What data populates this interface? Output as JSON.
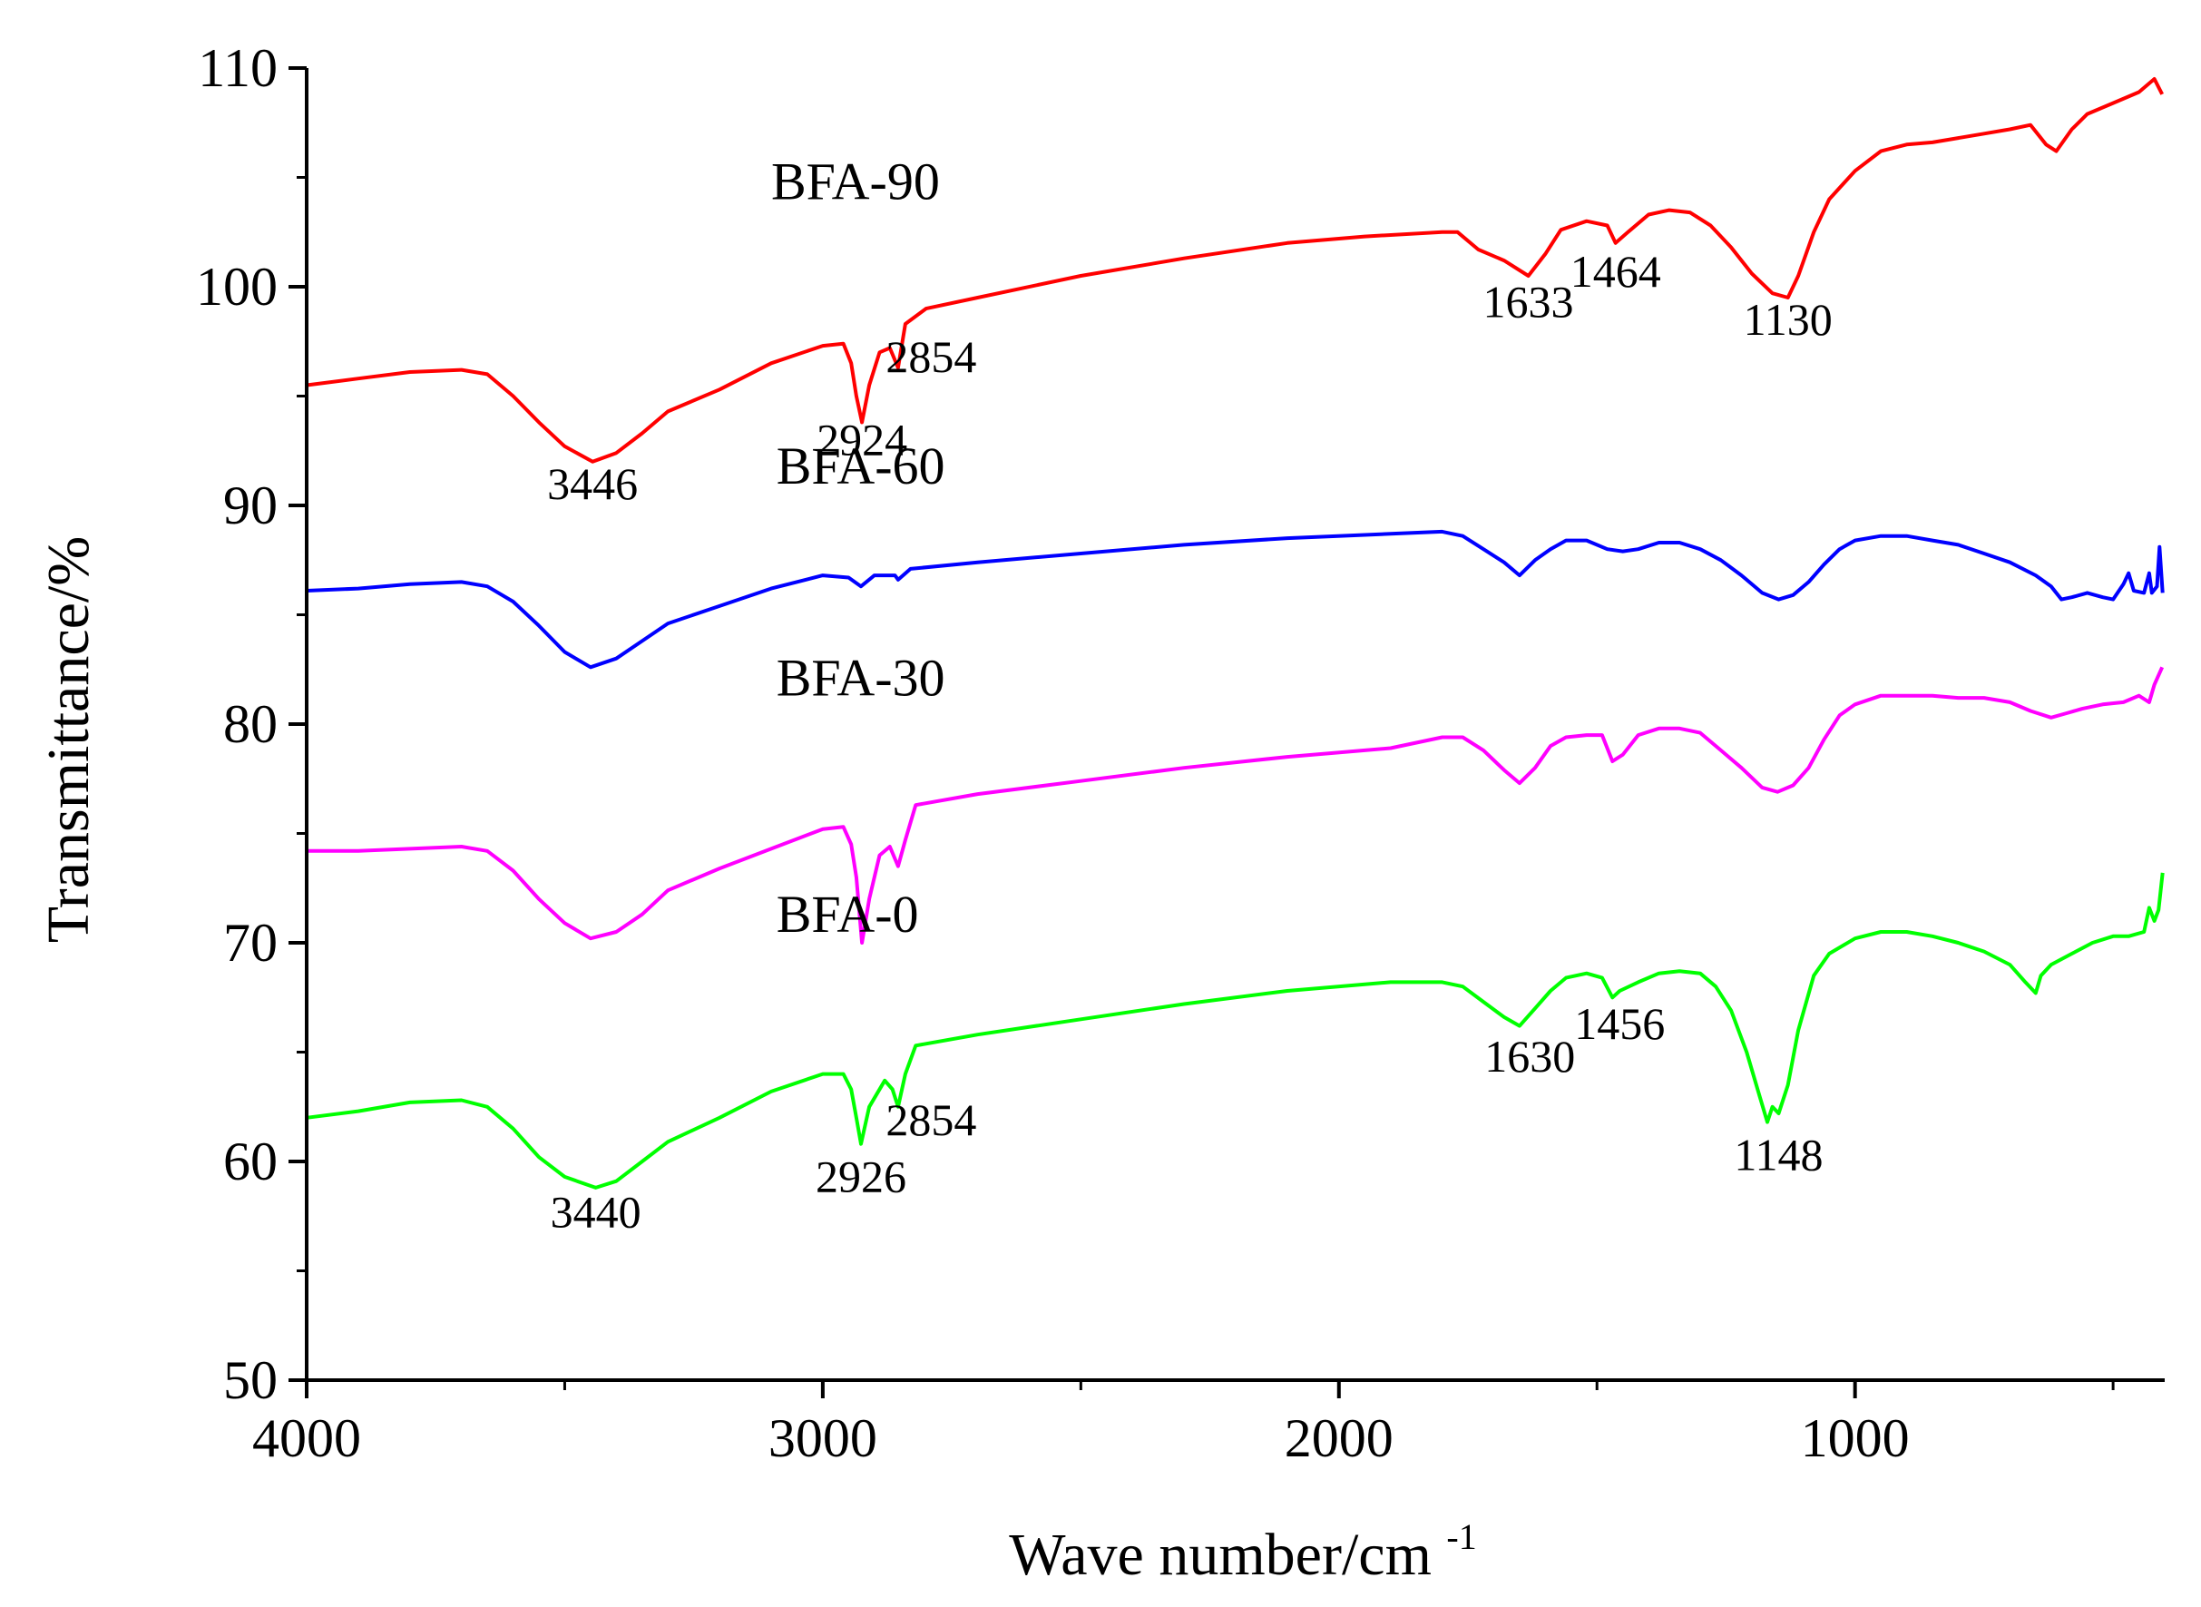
{
  "chart_data": {
    "type": "line",
    "title": "",
    "xlabel": "Wave number/cm",
    "xlabel_superscript": "-1",
    "ylabel": "Transmittance/%",
    "xlim": [
      4000,
      400
    ],
    "x_reversed": true,
    "ylim": [
      50,
      110
    ],
    "xticks": [
      4000,
      3000,
      2000,
      1000
    ],
    "yticks": [
      50,
      60,
      70,
      80,
      90,
      100,
      110
    ],
    "grid": false,
    "legend": "none",
    "series": [
      {
        "name": "BFA-90",
        "color": "#ff0000",
        "points": [
          [
            4000,
            95.5
          ],
          [
            3900,
            95.8
          ],
          [
            3800,
            96.1
          ],
          [
            3700,
            96.2
          ],
          [
            3650,
            96.0
          ],
          [
            3600,
            95.0
          ],
          [
            3550,
            93.8
          ],
          [
            3500,
            92.7
          ],
          [
            3446,
            92.0
          ],
          [
            3400,
            92.4
          ],
          [
            3350,
            93.3
          ],
          [
            3300,
            94.3
          ],
          [
            3200,
            95.3
          ],
          [
            3100,
            96.5
          ],
          [
            3000,
            97.3
          ],
          [
            2960,
            97.4
          ],
          [
            2945,
            96.5
          ],
          [
            2935,
            95.0
          ],
          [
            2924,
            93.8
          ],
          [
            2910,
            95.5
          ],
          [
            2890,
            97.0
          ],
          [
            2870,
            97.2
          ],
          [
            2854,
            96.3
          ],
          [
            2840,
            98.3
          ],
          [
            2800,
            99.0
          ],
          [
            2700,
            99.5
          ],
          [
            2500,
            100.5
          ],
          [
            2300,
            101.3
          ],
          [
            2100,
            102.0
          ],
          [
            1950,
            102.3
          ],
          [
            1800,
            102.5
          ],
          [
            1770,
            102.5
          ],
          [
            1730,
            101.7
          ],
          [
            1680,
            101.2
          ],
          [
            1633,
            100.5
          ],
          [
            1600,
            101.5
          ],
          [
            1570,
            102.6
          ],
          [
            1520,
            103.0
          ],
          [
            1480,
            102.8
          ],
          [
            1464,
            102.0
          ],
          [
            1440,
            102.5
          ],
          [
            1400,
            103.3
          ],
          [
            1360,
            103.5
          ],
          [
            1320,
            103.4
          ],
          [
            1280,
            102.8
          ],
          [
            1240,
            101.8
          ],
          [
            1200,
            100.6
          ],
          [
            1160,
            99.7
          ],
          [
            1130,
            99.5
          ],
          [
            1110,
            100.5
          ],
          [
            1080,
            102.5
          ],
          [
            1050,
            104.0
          ],
          [
            1000,
            105.3
          ],
          [
            950,
            106.2
          ],
          [
            900,
            106.5
          ],
          [
            850,
            106.6
          ],
          [
            800,
            106.8
          ],
          [
            750,
            107.0
          ],
          [
            700,
            107.2
          ],
          [
            660,
            107.4
          ],
          [
            630,
            106.5
          ],
          [
            610,
            106.2
          ],
          [
            580,
            107.2
          ],
          [
            550,
            107.9
          ],
          [
            500,
            108.4
          ],
          [
            450,
            108.9
          ],
          [
            420,
            109.5
          ],
          [
            405,
            108.8
          ]
        ]
      },
      {
        "name": "BFA-60",
        "color": "#0000ff",
        "points": [
          [
            4000,
            86.1
          ],
          [
            3900,
            86.2
          ],
          [
            3800,
            86.4
          ],
          [
            3700,
            86.5
          ],
          [
            3650,
            86.3
          ],
          [
            3600,
            85.6
          ],
          [
            3550,
            84.5
          ],
          [
            3500,
            83.3
          ],
          [
            3450,
            82.6
          ],
          [
            3400,
            83.0
          ],
          [
            3350,
            83.8
          ],
          [
            3300,
            84.6
          ],
          [
            3200,
            85.4
          ],
          [
            3100,
            86.2
          ],
          [
            3000,
            86.8
          ],
          [
            2950,
            86.7
          ],
          [
            2926,
            86.3
          ],
          [
            2900,
            86.8
          ],
          [
            2860,
            86.8
          ],
          [
            2854,
            86.6
          ],
          [
            2830,
            87.1
          ],
          [
            2700,
            87.4
          ],
          [
            2500,
            87.8
          ],
          [
            2300,
            88.2
          ],
          [
            2100,
            88.5
          ],
          [
            1900,
            88.7
          ],
          [
            1800,
            88.8
          ],
          [
            1760,
            88.6
          ],
          [
            1720,
            88.0
          ],
          [
            1680,
            87.4
          ],
          [
            1650,
            86.8
          ],
          [
            1620,
            87.5
          ],
          [
            1590,
            88.0
          ],
          [
            1560,
            88.4
          ],
          [
            1520,
            88.4
          ],
          [
            1480,
            88.0
          ],
          [
            1450,
            87.9
          ],
          [
            1420,
            88.0
          ],
          [
            1380,
            88.3
          ],
          [
            1340,
            88.3
          ],
          [
            1300,
            88.0
          ],
          [
            1260,
            87.5
          ],
          [
            1220,
            86.8
          ],
          [
            1180,
            86.0
          ],
          [
            1148,
            85.7
          ],
          [
            1120,
            85.9
          ],
          [
            1090,
            86.5
          ],
          [
            1060,
            87.3
          ],
          [
            1030,
            88.0
          ],
          [
            1000,
            88.4
          ],
          [
            950,
            88.6
          ],
          [
            900,
            88.6
          ],
          [
            850,
            88.4
          ],
          [
            800,
            88.2
          ],
          [
            750,
            87.8
          ],
          [
            700,
            87.4
          ],
          [
            650,
            86.8
          ],
          [
            620,
            86.3
          ],
          [
            600,
            85.7
          ],
          [
            580,
            85.8
          ],
          [
            550,
            86.0
          ],
          [
            520,
            85.8
          ],
          [
            500,
            85.7
          ],
          [
            480,
            86.4
          ],
          [
            470,
            86.9
          ],
          [
            460,
            86.1
          ],
          [
            440,
            86.0
          ],
          [
            430,
            86.9
          ],
          [
            425,
            86.0
          ],
          [
            415,
            86.3
          ],
          [
            410,
            88.1
          ],
          [
            404,
            86.0
          ]
        ]
      },
      {
        "name": "BFA-30",
        "color": "#ff00ff",
        "points": [
          [
            4000,
            74.2
          ],
          [
            3900,
            74.2
          ],
          [
            3800,
            74.3
          ],
          [
            3700,
            74.4
          ],
          [
            3650,
            74.2
          ],
          [
            3600,
            73.3
          ],
          [
            3550,
            72.0
          ],
          [
            3500,
            70.9
          ],
          [
            3450,
            70.2
          ],
          [
            3400,
            70.5
          ],
          [
            3350,
            71.3
          ],
          [
            3300,
            72.4
          ],
          [
            3200,
            73.4
          ],
          [
            3100,
            74.3
          ],
          [
            3000,
            75.2
          ],
          [
            2960,
            75.3
          ],
          [
            2945,
            74.5
          ],
          [
            2935,
            73.0
          ],
          [
            2924,
            70.0
          ],
          [
            2910,
            72.0
          ],
          [
            2890,
            74.0
          ],
          [
            2870,
            74.4
          ],
          [
            2854,
            73.5
          ],
          [
            2840,
            74.7
          ],
          [
            2820,
            76.3
          ],
          [
            2700,
            76.8
          ],
          [
            2500,
            77.4
          ],
          [
            2300,
            78.0
          ],
          [
            2100,
            78.5
          ],
          [
            1900,
            78.9
          ],
          [
            1800,
            79.4
          ],
          [
            1760,
            79.4
          ],
          [
            1720,
            78.8
          ],
          [
            1680,
            77.9
          ],
          [
            1650,
            77.3
          ],
          [
            1620,
            78.0
          ],
          [
            1590,
            79.0
          ],
          [
            1560,
            79.4
          ],
          [
            1520,
            79.5
          ],
          [
            1490,
            79.5
          ],
          [
            1470,
            78.3
          ],
          [
            1450,
            78.6
          ],
          [
            1420,
            79.5
          ],
          [
            1380,
            79.8
          ],
          [
            1340,
            79.8
          ],
          [
            1300,
            79.6
          ],
          [
            1260,
            78.8
          ],
          [
            1220,
            78.0
          ],
          [
            1180,
            77.1
          ],
          [
            1150,
            76.9
          ],
          [
            1120,
            77.2
          ],
          [
            1090,
            78.0
          ],
          [
            1060,
            79.3
          ],
          [
            1030,
            80.4
          ],
          [
            1000,
            80.9
          ],
          [
            950,
            81.3
          ],
          [
            900,
            81.3
          ],
          [
            850,
            81.3
          ],
          [
            800,
            81.2
          ],
          [
            750,
            81.2
          ],
          [
            700,
            81.0
          ],
          [
            660,
            80.6
          ],
          [
            620,
            80.3
          ],
          [
            590,
            80.5
          ],
          [
            560,
            80.7
          ],
          [
            520,
            80.9
          ],
          [
            480,
            81.0
          ],
          [
            450,
            81.3
          ],
          [
            430,
            81.0
          ],
          [
            420,
            81.8
          ],
          [
            405,
            82.6
          ]
        ]
      },
      {
        "name": "BFA-0",
        "color": "#00ff00",
        "points": [
          [
            4000,
            62.0
          ],
          [
            3900,
            62.3
          ],
          [
            3800,
            62.7
          ],
          [
            3700,
            62.8
          ],
          [
            3650,
            62.5
          ],
          [
            3600,
            61.5
          ],
          [
            3550,
            60.2
          ],
          [
            3500,
            59.3
          ],
          [
            3440,
            58.8
          ],
          [
            3400,
            59.1
          ],
          [
            3350,
            60.0
          ],
          [
            3300,
            60.9
          ],
          [
            3200,
            62.0
          ],
          [
            3100,
            63.2
          ],
          [
            3000,
            64.0
          ],
          [
            2960,
            64.0
          ],
          [
            2945,
            63.3
          ],
          [
            2935,
            62.0
          ],
          [
            2926,
            60.8
          ],
          [
            2910,
            62.5
          ],
          [
            2880,
            63.7
          ],
          [
            2865,
            63.3
          ],
          [
            2854,
            62.5
          ],
          [
            2840,
            64.0
          ],
          [
            2820,
            65.3
          ],
          [
            2700,
            65.8
          ],
          [
            2500,
            66.5
          ],
          [
            2300,
            67.2
          ],
          [
            2100,
            67.8
          ],
          [
            1900,
            68.2
          ],
          [
            1800,
            68.2
          ],
          [
            1760,
            68.0
          ],
          [
            1720,
            67.3
          ],
          [
            1680,
            66.6
          ],
          [
            1650,
            66.2
          ],
          [
            1620,
            67.0
          ],
          [
            1590,
            67.8
          ],
          [
            1560,
            68.4
          ],
          [
            1520,
            68.6
          ],
          [
            1490,
            68.4
          ],
          [
            1470,
            67.5
          ],
          [
            1456,
            67.8
          ],
          [
            1420,
            68.2
          ],
          [
            1380,
            68.6
          ],
          [
            1340,
            68.7
          ],
          [
            1300,
            68.6
          ],
          [
            1270,
            68.0
          ],
          [
            1240,
            66.9
          ],
          [
            1210,
            65.0
          ],
          [
            1185,
            63.0
          ],
          [
            1170,
            61.8
          ],
          [
            1160,
            62.5
          ],
          [
            1148,
            62.2
          ],
          [
            1130,
            63.5
          ],
          [
            1110,
            66.0
          ],
          [
            1080,
            68.5
          ],
          [
            1050,
            69.5
          ],
          [
            1000,
            70.2
          ],
          [
            950,
            70.5
          ],
          [
            900,
            70.5
          ],
          [
            850,
            70.3
          ],
          [
            800,
            70.0
          ],
          [
            750,
            69.6
          ],
          [
            700,
            69.0
          ],
          [
            670,
            68.2
          ],
          [
            650,
            67.7
          ],
          [
            640,
            68.5
          ],
          [
            620,
            69.0
          ],
          [
            580,
            69.5
          ],
          [
            540,
            70.0
          ],
          [
            500,
            70.3
          ],
          [
            470,
            70.3
          ],
          [
            440,
            70.5
          ],
          [
            430,
            71.6
          ],
          [
            420,
            71.0
          ],
          [
            412,
            71.5
          ],
          [
            404,
            73.2
          ]
        ]
      }
    ],
    "series_labels": [
      {
        "text": "BFA-90",
        "x": 3100,
        "y": 104.0
      },
      {
        "text": "BFA-60",
        "x": 3090,
        "y": 91.0
      },
      {
        "text": "BFA-30",
        "x": 3090,
        "y": 81.3
      },
      {
        "text": "BFA-0",
        "x": 3090,
        "y": 70.5
      }
    ],
    "annotations": [
      {
        "text": "3446",
        "x": 3446,
        "y": 90.3
      },
      {
        "text": "2924",
        "x": 2924,
        "y": 92.3
      },
      {
        "text": "2854",
        "x": 2790,
        "y": 96.1
      },
      {
        "text": "1633",
        "x": 1633,
        "y": 98.6
      },
      {
        "text": "1464",
        "x": 1464,
        "y": 100.0
      },
      {
        "text": "1130",
        "x": 1130,
        "y": 97.8
      },
      {
        "text": "3440",
        "x": 3440,
        "y": 57.0
      },
      {
        "text": "2926",
        "x": 2926,
        "y": 58.6
      },
      {
        "text": "2854",
        "x": 2790,
        "y": 61.2
      },
      {
        "text": "1630",
        "x": 1630,
        "y": 64.1
      },
      {
        "text": "1456",
        "x": 1456,
        "y": 65.6
      },
      {
        "text": "1148",
        "x": 1148,
        "y": 59.6
      }
    ]
  }
}
